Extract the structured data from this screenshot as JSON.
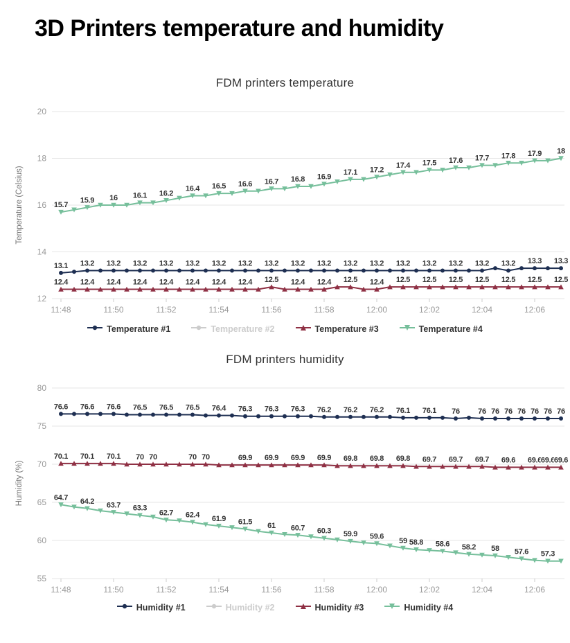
{
  "page": {
    "title": "3D Printers temperature and humidity"
  },
  "chart_data": [
    {
      "type": "line",
      "title": "FDM printers temperature",
      "xlabel": "",
      "ylabel": "Temperature (Celsius)",
      "ylim": [
        12,
        20
      ],
      "yticks": [
        12,
        14,
        16,
        18,
        20
      ],
      "n_points": 39,
      "x_tick_labels": [
        "11:48",
        "11:50",
        "11:52",
        "11:54",
        "11:56",
        "11:58",
        "12:00",
        "12:02",
        "12:04",
        "12:06"
      ],
      "x_tick_indices": [
        0,
        4,
        8,
        12,
        16,
        20,
        24,
        28,
        32,
        36
      ],
      "grid": true,
      "legend_position": "bottom",
      "series": [
        {
          "name": "Temperature #1",
          "color": "#1e2f52",
          "marker": "circle",
          "visible": true,
          "values": [
            13.1,
            13.15,
            13.2,
            13.2,
            13.2,
            13.2,
            13.2,
            13.2,
            13.2,
            13.2,
            13.2,
            13.2,
            13.2,
            13.2,
            13.2,
            13.2,
            13.2,
            13.2,
            13.2,
            13.2,
            13.2,
            13.2,
            13.2,
            13.2,
            13.2,
            13.2,
            13.2,
            13.2,
            13.2,
            13.2,
            13.2,
            13.2,
            13.2,
            13.3,
            13.2,
            13.3,
            13.3,
            13.3,
            13.3
          ],
          "labels": [
            "13.1",
            null,
            "13.2",
            null,
            "13.2",
            null,
            "13.2",
            null,
            "13.2",
            null,
            "13.2",
            null,
            "13.2",
            null,
            "13.2",
            null,
            "13.2",
            null,
            "13.2",
            null,
            "13.2",
            null,
            "13.2",
            null,
            "13.2",
            null,
            "13.2",
            null,
            "13.2",
            null,
            "13.2",
            null,
            "13.2",
            null,
            "13.2",
            null,
            "13.3",
            null,
            "13.3"
          ]
        },
        {
          "name": "Temperature #2",
          "color": "#cccccc",
          "marker": "circle",
          "visible": false
        },
        {
          "name": "Temperature #3",
          "color": "#8f3044",
          "marker": "triangle-up",
          "visible": true,
          "values": [
            12.4,
            12.4,
            12.4,
            12.4,
            12.4,
            12.4,
            12.4,
            12.4,
            12.4,
            12.4,
            12.4,
            12.4,
            12.4,
            12.4,
            12.4,
            12.4,
            12.5,
            12.4,
            12.4,
            12.4,
            12.4,
            12.5,
            12.5,
            12.4,
            12.4,
            12.5,
            12.5,
            12.5,
            12.5,
            12.5,
            12.5,
            12.5,
            12.5,
            12.5,
            12.5,
            12.5,
            12.5,
            12.5,
            12.5
          ],
          "labels": [
            "12.4",
            null,
            "12.4",
            null,
            "12.4",
            null,
            "12.4",
            null,
            "12.4",
            null,
            "12.4",
            null,
            "12.4",
            null,
            "12.4",
            null,
            "12.5",
            null,
            "12.4",
            null,
            "12.4",
            null,
            "12.5",
            null,
            "12.4",
            null,
            "12.5",
            null,
            "12.5",
            null,
            "12.5",
            null,
            "12.5",
            null,
            "12.5",
            null,
            "12.5",
            null,
            "12.5"
          ]
        },
        {
          "name": "Temperature #4",
          "color": "#76bf9b",
          "marker": "triangle-down",
          "visible": true,
          "values": [
            15.7,
            15.8,
            15.9,
            16,
            16,
            16,
            16.1,
            16.1,
            16.2,
            16.3,
            16.4,
            16.4,
            16.5,
            16.5,
            16.6,
            16.6,
            16.7,
            16.7,
            16.8,
            16.8,
            16.9,
            17,
            17.1,
            17.1,
            17.2,
            17.3,
            17.4,
            17.4,
            17.5,
            17.5,
            17.6,
            17.6,
            17.7,
            17.7,
            17.8,
            17.8,
            17.9,
            17.9,
            18
          ],
          "labels": [
            "15.7",
            null,
            "15.9",
            null,
            "16",
            null,
            "16.1",
            null,
            "16.2",
            null,
            "16.4",
            null,
            "16.5",
            null,
            "16.6",
            null,
            "16.7",
            null,
            "16.8",
            null,
            "16.9",
            null,
            "17.1",
            null,
            "17.2",
            null,
            "17.4",
            null,
            "17.5",
            null,
            "17.6",
            null,
            "17.7",
            null,
            "17.8",
            null,
            "17.9",
            null,
            "18"
          ]
        }
      ]
    },
    {
      "type": "line",
      "title": "FDM printers humidity",
      "xlabel": "",
      "ylabel": "Humidity (%)",
      "ylim": [
        55,
        80
      ],
      "yticks": [
        55,
        60,
        65,
        70,
        75,
        80
      ],
      "n_points": 39,
      "x_tick_labels": [
        "11:48",
        "11:50",
        "11:52",
        "11:54",
        "11:56",
        "11:58",
        "12:00",
        "12:02",
        "12:04",
        "12:06"
      ],
      "x_tick_indices": [
        0,
        4,
        8,
        12,
        16,
        20,
        24,
        28,
        32,
        36
      ],
      "grid": true,
      "legend_position": "bottom",
      "series": [
        {
          "name": "Humidity #1",
          "color": "#1e2f52",
          "marker": "circle",
          "visible": true,
          "values": [
            76.6,
            76.6,
            76.6,
            76.6,
            76.6,
            76.5,
            76.5,
            76.5,
            76.5,
            76.5,
            76.5,
            76.4,
            76.4,
            76.4,
            76.3,
            76.3,
            76.3,
            76.3,
            76.3,
            76.3,
            76.2,
            76.2,
            76.2,
            76.2,
            76.2,
            76.2,
            76.1,
            76.1,
            76.1,
            76.1,
            76,
            76.1,
            76,
            76,
            76,
            76,
            76,
            76,
            76
          ],
          "labels": [
            "76.6",
            null,
            "76.6",
            null,
            "76.6",
            null,
            "76.5",
            null,
            "76.5",
            null,
            "76.5",
            null,
            "76.4",
            null,
            "76.3",
            null,
            "76.3",
            null,
            "76.3",
            null,
            "76.2",
            null,
            "76.2",
            null,
            "76.2",
            null,
            "76.1",
            null,
            "76.1",
            null,
            "76",
            null,
            "76",
            "76",
            "76",
            "76",
            "76",
            "76",
            "76"
          ]
        },
        {
          "name": "Humidity #2",
          "color": "#cccccc",
          "marker": "circle",
          "visible": false
        },
        {
          "name": "Humidity #3",
          "color": "#8f3044",
          "marker": "triangle-up",
          "visible": true,
          "values": [
            70.1,
            70.1,
            70.1,
            70.1,
            70.1,
            70,
            70,
            70,
            70,
            70,
            70,
            70,
            69.9,
            69.9,
            69.9,
            69.9,
            69.9,
            69.9,
            69.9,
            69.9,
            69.9,
            69.8,
            69.8,
            69.8,
            69.8,
            69.8,
            69.8,
            69.7,
            69.7,
            69.7,
            69.7,
            69.7,
            69.7,
            69.6,
            69.6,
            69.6,
            69.6,
            69.6,
            69.6
          ],
          "labels": [
            "70.1",
            null,
            "70.1",
            null,
            "70.1",
            null,
            "70",
            "70",
            null,
            null,
            "70",
            "70",
            null,
            null,
            "69.9",
            null,
            "69.9",
            null,
            "69.9",
            null,
            "69.9",
            null,
            "69.8",
            null,
            "69.8",
            null,
            "69.8",
            null,
            "69.7",
            null,
            "69.7",
            null,
            "69.7",
            null,
            "69.6",
            null,
            "69.6",
            "69.6",
            "69.6"
          ]
        },
        {
          "name": "Humidity #4",
          "color": "#76bf9b",
          "marker": "triangle-down",
          "visible": true,
          "values": [
            64.7,
            64.4,
            64.2,
            63.9,
            63.7,
            63.5,
            63.3,
            63.1,
            62.7,
            62.6,
            62.4,
            62.1,
            61.9,
            61.7,
            61.5,
            61.2,
            61,
            60.8,
            60.7,
            60.5,
            60.3,
            60.1,
            59.9,
            59.7,
            59.6,
            59.3,
            59,
            58.8,
            58.7,
            58.6,
            58.4,
            58.2,
            58.1,
            58,
            57.8,
            57.6,
            57.4,
            57.3,
            57.3
          ],
          "labels": [
            "64.7",
            null,
            "64.2",
            null,
            "63.7",
            null,
            "63.3",
            null,
            "62.7",
            null,
            "62.4",
            null,
            "61.9",
            null,
            "61.5",
            null,
            "61",
            null,
            "60.7",
            null,
            "60.3",
            null,
            "59.9",
            null,
            "59.6",
            null,
            "59",
            "58.8",
            null,
            "58.6",
            null,
            "58.2",
            null,
            "58",
            null,
            "57.6",
            null,
            "57.3",
            null
          ]
        }
      ]
    }
  ]
}
